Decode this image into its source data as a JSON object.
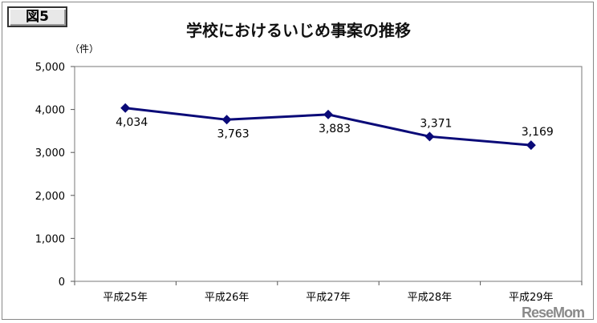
{
  "figure_label": "図5",
  "chart_data": {
    "type": "line",
    "title": "学校におけるいじめ事案の推移",
    "unit_label": "（件）",
    "categories": [
      "平成25年",
      "平成26年",
      "平成27年",
      "平成28年",
      "平成29年"
    ],
    "series": [
      {
        "values": [
          4034,
          3763,
          3883,
          3371,
          3169
        ],
        "color": "#0a0a78"
      }
    ],
    "data_labels": [
      "4,034",
      "3,763",
      "3,883",
      "3,371",
      "3,169"
    ],
    "ylim": [
      0,
      5000
    ],
    "yticks": [
      0,
      1000,
      2000,
      3000,
      4000,
      5000
    ],
    "ytick_labels": [
      "0",
      "1,000",
      "2,000",
      "3,000",
      "4,000",
      "5,000"
    ],
    "grid": false,
    "marker": "diamond"
  },
  "watermark": "ReseMom"
}
